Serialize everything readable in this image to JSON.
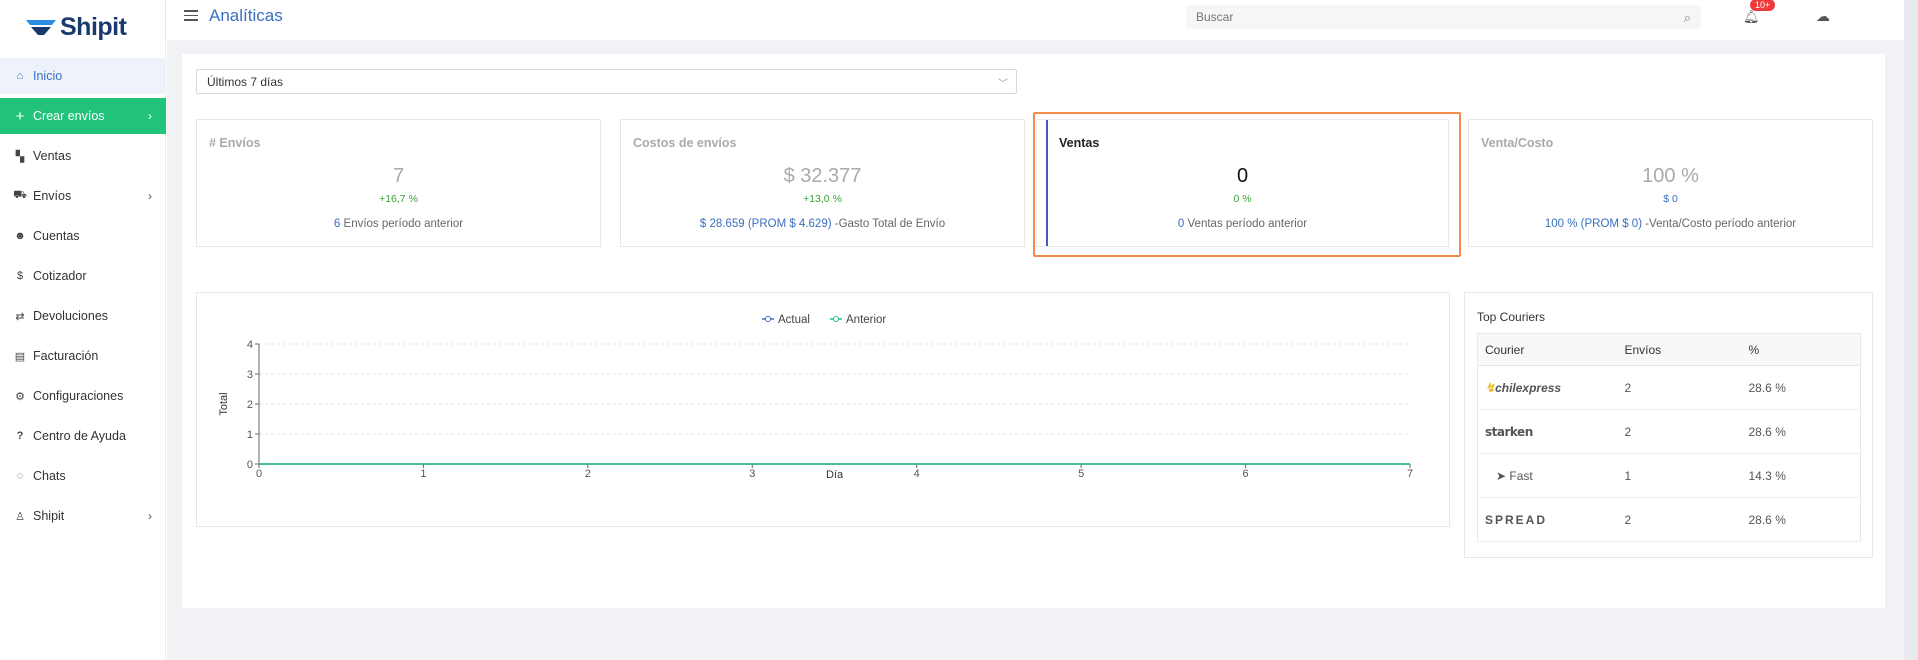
{
  "app": {
    "name": "Shipit"
  },
  "header": {
    "title": "Analíticas",
    "search_placeholder": "Buscar",
    "notifications_badge": "10+"
  },
  "sidebar": {
    "items": [
      {
        "label": "Inicio",
        "icon": "home-icon"
      },
      {
        "label": "Crear envíos",
        "icon": "plus-icon"
      },
      {
        "label": "Ventas",
        "icon": "boxes-icon"
      },
      {
        "label": "Envíos",
        "icon": "truck-icon"
      },
      {
        "label": "Cuentas",
        "icon": "users-icon"
      },
      {
        "label": "Cotizador",
        "icon": "dollar-icon"
      },
      {
        "label": "Devoluciones",
        "icon": "return-icon"
      },
      {
        "label": "Facturación",
        "icon": "invoice-icon"
      },
      {
        "label": "Configuraciones",
        "icon": "gear-icon"
      },
      {
        "label": "Centro de Ayuda",
        "icon": "question-icon"
      },
      {
        "label": "Chats",
        "icon": "chat-icon"
      },
      {
        "label": "Shipit",
        "icon": "user-icon"
      }
    ]
  },
  "filters": {
    "period": "Últimos 7 días"
  },
  "cards": [
    {
      "title": "# Envíos",
      "value": "7",
      "change": "+16,7 %",
      "prev_value": "6",
      "prev_label": " Envíos período anterior"
    },
    {
      "title": "Costos de envíos",
      "value": "$ 32.377",
      "change": "+13,0 %",
      "prev_value": "$ 28.659 (PROM $ 4.629)",
      "prev_label": " -Gasto Total de Envío"
    },
    {
      "title": "Ventas",
      "value": "0",
      "change": "0 %",
      "prev_value": "0",
      "prev_label": " Ventas período anterior"
    },
    {
      "title": "Venta/Costo",
      "value": "100 %",
      "change": "$ 0",
      "prev_value": "100 % (PROM $ 0)",
      "prev_label": " -Venta/Costo período anterior"
    }
  ],
  "chart_data": {
    "type": "line",
    "x": [
      0,
      1,
      2,
      3,
      4,
      5,
      6,
      7
    ],
    "series": [
      {
        "name": "Actual",
        "values": [
          0,
          0,
          0,
          0,
          0,
          0,
          0,
          0
        ],
        "color": "#3a6fbf"
      },
      {
        "name": "Anterior",
        "values": [
          0,
          0,
          0,
          0,
          0,
          0,
          0,
          0
        ],
        "color": "#21c37a"
      }
    ],
    "xlabel": "Día",
    "ylabel": "Total",
    "ylim": [
      0,
      4
    ],
    "yticks": [
      0,
      1,
      2,
      3,
      4
    ],
    "legend": "top-center",
    "grid": true
  },
  "couriers": {
    "title": "Top Couriers",
    "columns": [
      "Courier",
      "Envíos",
      "%"
    ],
    "rows": [
      {
        "courier": "chilexpress",
        "envios": "2",
        "pct": "28.6 %"
      },
      {
        "courier": "starken",
        "envios": "2",
        "pct": "28.6 %"
      },
      {
        "courier": "Fast",
        "envios": "1",
        "pct": "14.3 %"
      },
      {
        "courier": "SPREAD",
        "envios": "2",
        "pct": "28.6 %"
      }
    ]
  }
}
